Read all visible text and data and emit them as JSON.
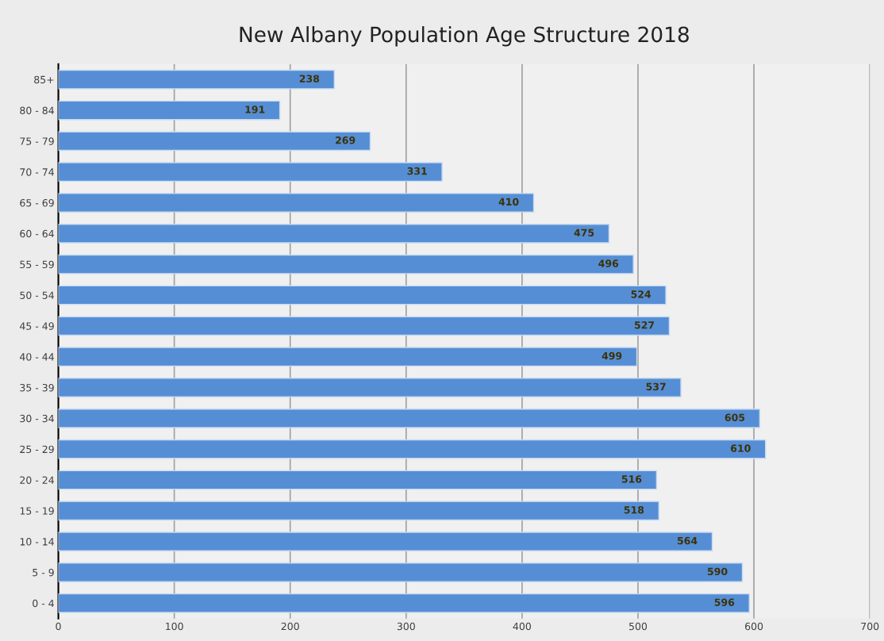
{
  "chart_data": {
    "type": "bar",
    "orientation": "horizontal",
    "title": "New Albany Population Age Structure 2018",
    "categories": [
      "85+",
      "80 - 84",
      "75 - 79",
      "70 - 74",
      "65 - 69",
      "60 - 64",
      "55 - 59",
      "50 - 54",
      "45 - 49",
      "40 - 44",
      "35 - 39",
      "30 - 34",
      "25 - 29",
      "20 - 24",
      "15 - 19",
      "10 - 14",
      "5 - 9",
      "0 - 4"
    ],
    "values": [
      238,
      191,
      269,
      331,
      410,
      475,
      496,
      524,
      527,
      499,
      537,
      605,
      610,
      516,
      518,
      564,
      590,
      596
    ],
    "color": "#558ed5",
    "data_labels": true,
    "xlim": [
      0,
      700
    ],
    "xticks": [
      0,
      100,
      200,
      300,
      400,
      500,
      600,
      700
    ],
    "grid": "x",
    "legend": false
  }
}
